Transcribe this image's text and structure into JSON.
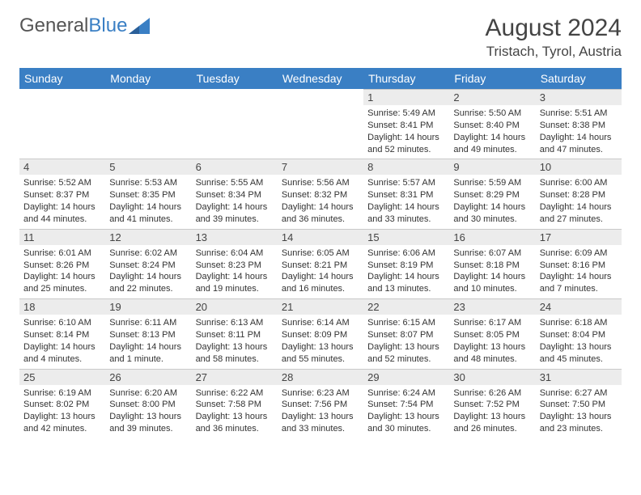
{
  "brand": {
    "word1": "General",
    "word2": "Blue"
  },
  "title": "August 2024",
  "location": "Tristach, Tyrol, Austria",
  "colors": {
    "header_bg": "#3a7fc4",
    "header_text": "#ffffff",
    "daynum_bg": "#ececec",
    "body_text": "#333333"
  },
  "weekdays": [
    "Sunday",
    "Monday",
    "Tuesday",
    "Wednesday",
    "Thursday",
    "Friday",
    "Saturday"
  ],
  "weeks": [
    [
      null,
      null,
      null,
      null,
      {
        "n": "1",
        "sunrise": "5:49 AM",
        "sunset": "8:41 PM",
        "daylight": "14 hours and 52 minutes."
      },
      {
        "n": "2",
        "sunrise": "5:50 AM",
        "sunset": "8:40 PM",
        "daylight": "14 hours and 49 minutes."
      },
      {
        "n": "3",
        "sunrise": "5:51 AM",
        "sunset": "8:38 PM",
        "daylight": "14 hours and 47 minutes."
      }
    ],
    [
      {
        "n": "4",
        "sunrise": "5:52 AM",
        "sunset": "8:37 PM",
        "daylight": "14 hours and 44 minutes."
      },
      {
        "n": "5",
        "sunrise": "5:53 AM",
        "sunset": "8:35 PM",
        "daylight": "14 hours and 41 minutes."
      },
      {
        "n": "6",
        "sunrise": "5:55 AM",
        "sunset": "8:34 PM",
        "daylight": "14 hours and 39 minutes."
      },
      {
        "n": "7",
        "sunrise": "5:56 AM",
        "sunset": "8:32 PM",
        "daylight": "14 hours and 36 minutes."
      },
      {
        "n": "8",
        "sunrise": "5:57 AM",
        "sunset": "8:31 PM",
        "daylight": "14 hours and 33 minutes."
      },
      {
        "n": "9",
        "sunrise": "5:59 AM",
        "sunset": "8:29 PM",
        "daylight": "14 hours and 30 minutes."
      },
      {
        "n": "10",
        "sunrise": "6:00 AM",
        "sunset": "8:28 PM",
        "daylight": "14 hours and 27 minutes."
      }
    ],
    [
      {
        "n": "11",
        "sunrise": "6:01 AM",
        "sunset": "8:26 PM",
        "daylight": "14 hours and 25 minutes."
      },
      {
        "n": "12",
        "sunrise": "6:02 AM",
        "sunset": "8:24 PM",
        "daylight": "14 hours and 22 minutes."
      },
      {
        "n": "13",
        "sunrise": "6:04 AM",
        "sunset": "8:23 PM",
        "daylight": "14 hours and 19 minutes."
      },
      {
        "n": "14",
        "sunrise": "6:05 AM",
        "sunset": "8:21 PM",
        "daylight": "14 hours and 16 minutes."
      },
      {
        "n": "15",
        "sunrise": "6:06 AM",
        "sunset": "8:19 PM",
        "daylight": "14 hours and 13 minutes."
      },
      {
        "n": "16",
        "sunrise": "6:07 AM",
        "sunset": "8:18 PM",
        "daylight": "14 hours and 10 minutes."
      },
      {
        "n": "17",
        "sunrise": "6:09 AM",
        "sunset": "8:16 PM",
        "daylight": "14 hours and 7 minutes."
      }
    ],
    [
      {
        "n": "18",
        "sunrise": "6:10 AM",
        "sunset": "8:14 PM",
        "daylight": "14 hours and 4 minutes."
      },
      {
        "n": "19",
        "sunrise": "6:11 AM",
        "sunset": "8:13 PM",
        "daylight": "14 hours and 1 minute."
      },
      {
        "n": "20",
        "sunrise": "6:13 AM",
        "sunset": "8:11 PM",
        "daylight": "13 hours and 58 minutes."
      },
      {
        "n": "21",
        "sunrise": "6:14 AM",
        "sunset": "8:09 PM",
        "daylight": "13 hours and 55 minutes."
      },
      {
        "n": "22",
        "sunrise": "6:15 AM",
        "sunset": "8:07 PM",
        "daylight": "13 hours and 52 minutes."
      },
      {
        "n": "23",
        "sunrise": "6:17 AM",
        "sunset": "8:05 PM",
        "daylight": "13 hours and 48 minutes."
      },
      {
        "n": "24",
        "sunrise": "6:18 AM",
        "sunset": "8:04 PM",
        "daylight": "13 hours and 45 minutes."
      }
    ],
    [
      {
        "n": "25",
        "sunrise": "6:19 AM",
        "sunset": "8:02 PM",
        "daylight": "13 hours and 42 minutes."
      },
      {
        "n": "26",
        "sunrise": "6:20 AM",
        "sunset": "8:00 PM",
        "daylight": "13 hours and 39 minutes."
      },
      {
        "n": "27",
        "sunrise": "6:22 AM",
        "sunset": "7:58 PM",
        "daylight": "13 hours and 36 minutes."
      },
      {
        "n": "28",
        "sunrise": "6:23 AM",
        "sunset": "7:56 PM",
        "daylight": "13 hours and 33 minutes."
      },
      {
        "n": "29",
        "sunrise": "6:24 AM",
        "sunset": "7:54 PM",
        "daylight": "13 hours and 30 minutes."
      },
      {
        "n": "30",
        "sunrise": "6:26 AM",
        "sunset": "7:52 PM",
        "daylight": "13 hours and 26 minutes."
      },
      {
        "n": "31",
        "sunrise": "6:27 AM",
        "sunset": "7:50 PM",
        "daylight": "13 hours and 23 minutes."
      }
    ]
  ],
  "labels": {
    "sunrise": "Sunrise: ",
    "sunset": "Sunset: ",
    "daylight": "Daylight: "
  }
}
